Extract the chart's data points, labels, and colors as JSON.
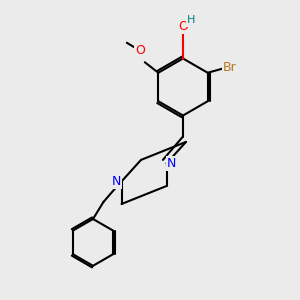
{
  "background_color": "#ebebeb",
  "bond_color": "#000000",
  "bond_lw": 1.5,
  "atom_colors": {
    "O": "#ff0000",
    "N": "#0000ff",
    "Br": "#b87820",
    "H": "#008080",
    "C": "#000000"
  },
  "font_size": 9,
  "font_size_small": 8
}
